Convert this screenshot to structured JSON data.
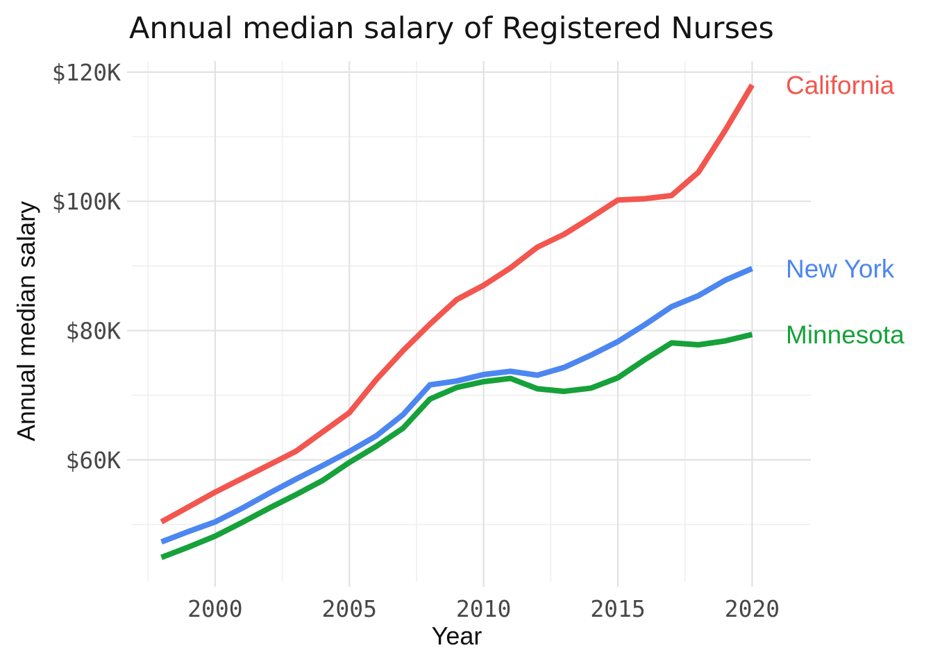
{
  "page": {
    "background": "#FFFFFF"
  },
  "title": "Annual median salary of Registered Nurses",
  "x_axis": {
    "label": "Year",
    "range": [
      1996.9,
      2021.1
    ],
    "major_ticks": [
      {
        "value": 2000,
        "label": "2000"
      },
      {
        "value": 2005,
        "label": "2005"
      },
      {
        "value": 2010,
        "label": "2010"
      },
      {
        "value": 2015,
        "label": "2015"
      },
      {
        "value": 2020,
        "label": "2020"
      }
    ],
    "minor_ticks": [
      1997.5,
      2002.5,
      2007.5,
      2012.5,
      2017.5
    ]
  },
  "y_axis": {
    "label": "Annual median salary",
    "unit": "USD thousands",
    "range": [
      41.2,
      121.7
    ],
    "major_ticks": [
      {
        "value": 60,
        "label": "$60K"
      },
      {
        "value": 80,
        "label": "$80K"
      },
      {
        "value": 100,
        "label": "$100K"
      },
      {
        "value": 120,
        "label": "$120K"
      }
    ],
    "minor_ticks": [
      50,
      70,
      90,
      110
    ]
  },
  "chart_data": {
    "type": "line",
    "title": "Annual median salary of Registered Nurses",
    "xlabel": "Year",
    "ylabel": "Annual median salary",
    "value_format": "$K (thousands of dollars)",
    "grid": "major and minor, light gray on white",
    "legend_position": "direct labels right of line ends",
    "x": [
      1998,
      1999,
      2000,
      2001,
      2002,
      2003,
      2004,
      2005,
      2006,
      2007,
      2008,
      2009,
      2010,
      2011,
      2012,
      2013,
      2014,
      2015,
      2016,
      2017,
      2018,
      2019,
      2020
    ],
    "series": [
      {
        "name": "California",
        "color": "#F2564E",
        "values": [
          50.4,
          52.7,
          55.0,
          57.1,
          59.2,
          61.3,
          64.3,
          67.3,
          72.4,
          76.9,
          81.0,
          84.8,
          87.0,
          89.7,
          92.9,
          94.9,
          97.5,
          100.2,
          100.4,
          100.9,
          104.5,
          111.0,
          118.0
        ]
      },
      {
        "name": "New York",
        "color": "#4C86F0",
        "values": [
          47.3,
          48.9,
          50.4,
          52.5,
          54.8,
          57.0,
          59.1,
          61.3,
          63.7,
          67.0,
          71.6,
          72.2,
          73.2,
          73.7,
          73.1,
          74.3,
          76.2,
          78.3,
          80.9,
          83.7,
          85.4,
          87.8,
          89.6
        ]
      },
      {
        "name": "Minnesota",
        "color": "#16A13A",
        "values": [
          44.9,
          46.5,
          48.2,
          50.3,
          52.5,
          54.6,
          56.8,
          59.6,
          62.1,
          64.9,
          69.4,
          71.2,
          72.1,
          72.6,
          71.0,
          70.6,
          71.1,
          72.7,
          75.5,
          78.1,
          77.8,
          78.4,
          79.4
        ]
      }
    ]
  },
  "colors": {
    "grid_major": "#E2E2E2",
    "grid_minor": "#EFEFEF",
    "tick_label": "#474747",
    "title": "#141414",
    "axis_title": "#0F0F0F"
  }
}
